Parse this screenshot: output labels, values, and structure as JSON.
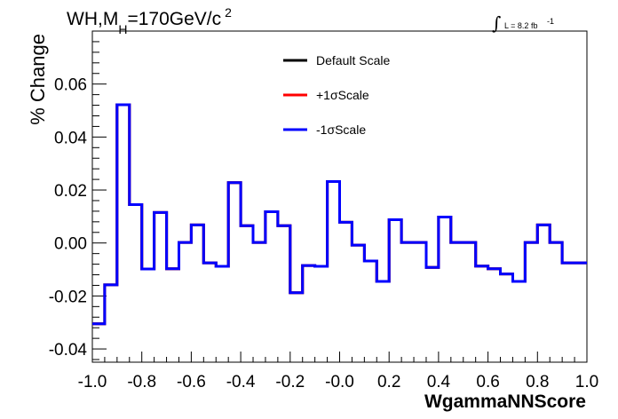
{
  "title": {
    "prefix": "WH,M",
    "subscript": "H",
    "value": "=170GeV/c",
    "superscript": "2"
  },
  "luminosity": {
    "integral_symbol": "∫",
    "text": "L = 8.2 fb",
    "superscript": "-1"
  },
  "legend": [
    {
      "label": "Default Scale",
      "color": "#000000"
    },
    {
      "label": "+1σScale",
      "color": "#ff0000"
    },
    {
      "label": "-1σScale",
      "color": "#0000ff"
    }
  ],
  "chart_data": {
    "type": "line",
    "style": "step",
    "title": "WH,MH=170GeV/c2",
    "xlabel": "WgammaNNScore",
    "ylabel": "% Change",
    "xlim": [
      -1.0,
      1.0
    ],
    "ylim": [
      -0.045,
      0.08
    ],
    "x_tick_labels": [
      "-1.0",
      "-0.8",
      "-0.6",
      "-0.4",
      "-0.2",
      "-0.0",
      "0.2",
      "0.4",
      "0.6",
      "0.8",
      "1.0"
    ],
    "x_ticks": [
      -1.0,
      -0.8,
      -0.6,
      -0.4,
      -0.2,
      0.0,
      0.2,
      0.4,
      0.6,
      0.8,
      1.0
    ],
    "y_tick_labels": [
      "-0.04",
      "-0.02",
      "0.00",
      "0.02",
      "0.04",
      "0.06"
    ],
    "y_ticks": [
      -0.04,
      -0.02,
      0.0,
      0.02,
      0.04,
      0.06
    ],
    "bin_edges": [
      -1.0,
      -0.95,
      -0.9,
      -0.85,
      -0.8,
      -0.75,
      -0.7,
      -0.65,
      -0.6,
      -0.55,
      -0.5,
      -0.45,
      -0.4,
      -0.35,
      -0.3,
      -0.25,
      -0.2,
      -0.15,
      -0.1,
      -0.05,
      0.0,
      0.05,
      0.1,
      0.15,
      0.2,
      0.25,
      0.3,
      0.35,
      0.4,
      0.45,
      0.5,
      0.55,
      0.6,
      0.65,
      0.7,
      0.75,
      0.8,
      0.85,
      0.9,
      0.95,
      1.0
    ],
    "series": [
      {
        "name": "Default Scale",
        "color": "#000000",
        "values": [
          -0.0305,
          -0.0158,
          0.0522,
          0.0145,
          -0.0098,
          0.0115,
          -0.0097,
          0.0002,
          0.0068,
          -0.0075,
          -0.0088,
          0.0228,
          0.0065,
          0.0002,
          0.0118,
          0.0065,
          -0.0188,
          -0.0085,
          -0.0088,
          0.0232,
          0.0078,
          -0.0008,
          -0.0068,
          -0.0145,
          0.0088,
          0.0002,
          0.0002,
          -0.0092,
          0.0098,
          0.0002,
          0.0002,
          -0.0087,
          -0.0097,
          -0.0117,
          -0.0145,
          0.0002,
          0.0068,
          0.0002,
          -0.0075,
          -0.0075
        ]
      },
      {
        "name": "+1σScale",
        "color": "#ff0000",
        "values": [
          -0.0305,
          -0.0158,
          0.0522,
          0.0145,
          -0.0098,
          0.0115,
          -0.0097,
          0.0002,
          0.0068,
          -0.0075,
          -0.0088,
          0.0228,
          0.0065,
          0.0002,
          0.0118,
          0.0065,
          -0.0188,
          -0.0085,
          -0.0088,
          0.0232,
          0.0078,
          -0.0008,
          -0.0068,
          -0.0145,
          0.0088,
          0.0002,
          0.0002,
          -0.0092,
          0.0098,
          0.0002,
          0.0002,
          -0.0087,
          -0.0097,
          -0.0117,
          -0.0145,
          0.0002,
          0.0068,
          0.0002,
          -0.0075,
          -0.0075
        ]
      },
      {
        "name": "-1σScale",
        "color": "#0000ff",
        "values": [
          -0.0305,
          -0.0158,
          0.0522,
          0.0145,
          -0.0098,
          0.0115,
          -0.0097,
          0.0002,
          0.0068,
          -0.0075,
          -0.0088,
          0.0228,
          0.0065,
          0.0002,
          0.0118,
          0.0065,
          -0.0188,
          -0.0085,
          -0.0088,
          0.0232,
          0.0078,
          -0.0008,
          -0.0068,
          -0.0145,
          0.0088,
          0.0002,
          0.0002,
          -0.0092,
          0.0098,
          0.0002,
          0.0002,
          -0.0087,
          -0.0097,
          -0.0117,
          -0.0145,
          0.0002,
          0.0068,
          0.0002,
          -0.0075,
          -0.0075
        ]
      }
    ],
    "legend_position": "top-center",
    "grid": false
  }
}
